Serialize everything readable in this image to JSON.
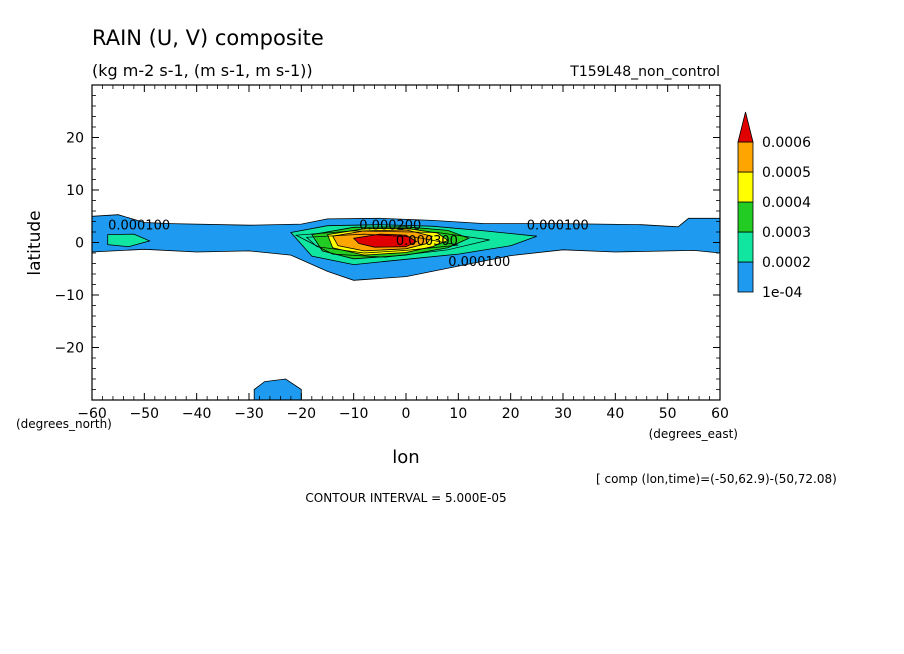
{
  "chart_data": {
    "type": "contour",
    "title": "RAIN (U, V) composite",
    "subtitle": "(kg m-2 s-1, (m s-1, m s-1))",
    "dataset": "T159L48_non_control",
    "xlabel": "lon",
    "ylabel": "latitude",
    "x_units": "(degrees_east)",
    "y_units": "(degrees_north)",
    "xlim": [
      -60,
      60
    ],
    "ylim": [
      -30,
      30
    ],
    "x_ticks": [
      -60,
      -50,
      -40,
      -30,
      -20,
      -10,
      0,
      10,
      20,
      30,
      40,
      50,
      60
    ],
    "y_ticks": [
      -20,
      -10,
      0,
      10,
      20
    ],
    "colorbar": {
      "levels": [
        "1e-04",
        "0.0002",
        "0.0003",
        "0.0004",
        "0.0005",
        "0.0006"
      ],
      "colors": [
        "#1e9bf0",
        "#10e6a0",
        "#22cc22",
        "#ffff00",
        "#ffa500",
        "#e00000"
      ]
    },
    "contour_labels": [
      {
        "text": "0.000100",
        "lon": -51,
        "lat": 2.5
      },
      {
        "text": "0.000100",
        "lon": 29,
        "lat": 2.5
      },
      {
        "text": "0.000100",
        "lon": 14,
        "lat": -4.5
      },
      {
        "text": "0.000200",
        "lon": -3,
        "lat": 2.5
      },
      {
        "text": "0.000300",
        "lon": 4,
        "lat": -0.5
      }
    ],
    "footer_note": "[ comp (lon,time)=(-50,62.9)-(50,72.08)",
    "contour_interval": "CONTOUR INTERVAL = 5.000E-05"
  }
}
